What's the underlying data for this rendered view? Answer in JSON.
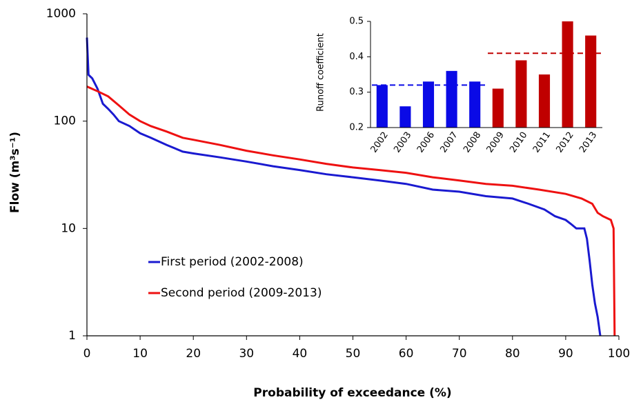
{
  "chart_data": [
    {
      "type": "line",
      "x_label": "Probability of exceedance (%)",
      "y_label": "Flow (m³s⁻¹)",
      "xlim": [
        0,
        100
      ],
      "xticks": [
        0,
        10,
        20,
        30,
        40,
        50,
        60,
        70,
        80,
        90,
        100
      ],
      "ylim": [
        1,
        1000
      ],
      "yticks": [
        1,
        10,
        100,
        1000
      ],
      "log_y": true,
      "series": [
        {
          "name": "First period (2002-2008)",
          "color": "#1a1ad0",
          "x": [
            0,
            0.3,
            1,
            2,
            3,
            4,
            5,
            6,
            8,
            10,
            12,
            15,
            18,
            20,
            25,
            30,
            35,
            40,
            45,
            50,
            55,
            60,
            65,
            70,
            75,
            80,
            83,
            86,
            88,
            90,
            91,
            92,
            93.5,
            94,
            94.5,
            95,
            95.5,
            96,
            96.5
          ],
          "values": [
            600,
            270,
            250,
            200,
            145,
            130,
            115,
            100,
            90,
            77,
            70,
            60,
            52,
            50,
            46,
            42,
            38,
            35,
            32,
            30,
            28,
            26,
            23,
            22,
            20,
            19,
            17,
            15,
            13,
            12,
            11,
            10,
            10,
            8,
            5,
            3,
            2,
            1.5,
            1
          ]
        },
        {
          "name": "Second period (2009-2013)",
          "color": "#ee1111",
          "x": [
            0,
            2,
            4,
            6,
            8,
            10,
            12,
            15,
            18,
            20,
            25,
            30,
            35,
            40,
            45,
            50,
            55,
            60,
            65,
            70,
            75,
            80,
            85,
            90,
            93,
            95,
            96,
            97,
            98.5,
            99,
            99.2
          ],
          "values": [
            210,
            190,
            170,
            140,
            115,
            100,
            90,
            80,
            70,
            67,
            60,
            53,
            48,
            44,
            40,
            37,
            35,
            33,
            30,
            28,
            26,
            25,
            23,
            21,
            19,
            17,
            14,
            13,
            12,
            10,
            1
          ]
        }
      ]
    },
    {
      "type": "bar",
      "y_label": "Runoff coefficient",
      "categories": [
        "2002",
        "2003",
        "2006",
        "2007",
        "2008",
        "2009",
        "2010",
        "2011",
        "2012",
        "2013"
      ],
      "values": [
        0.32,
        0.26,
        0.33,
        0.36,
        0.33,
        0.31,
        0.39,
        0.35,
        0.5,
        0.46
      ],
      "colors": [
        "#0a0ae6",
        "#0a0ae6",
        "#0a0ae6",
        "#0a0ae6",
        "#0a0ae6",
        "#c00000",
        "#c00000",
        "#c00000",
        "#c00000",
        "#c00000"
      ],
      "means": [
        {
          "value": 0.32,
          "color": "#0a0ae6"
        },
        {
          "value": 0.41,
          "color": "#c00000"
        }
      ],
      "ylim": [
        0.2,
        0.5
      ],
      "yticks": [
        0.2,
        0.3,
        0.4,
        0.5
      ]
    }
  ]
}
